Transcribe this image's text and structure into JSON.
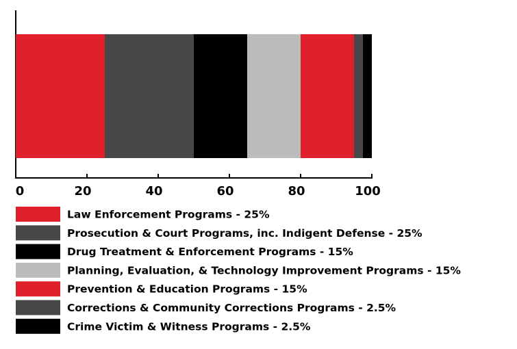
{
  "chart_data": {
    "type": "bar",
    "orientation": "horizontal",
    "stacked": true,
    "categories": [
      null
    ],
    "series": [
      {
        "name": "Law Enforcement Programs - 25%",
        "color": "#e0202a",
        "values": [
          25
        ]
      },
      {
        "name": "Prosecution & Court Programs, inc. Indigent Defense - 25%",
        "color": "#48484a",
        "values": [
          25
        ]
      },
      {
        "name": "Drug Treatment & Enforcement Programs - 15%",
        "color": "#000000",
        "values": [
          15
        ]
      },
      {
        "name": "Planning, Evaluation, & Technology Improvement Programs - 15%",
        "color": "#bcbcba",
        "values": [
          15
        ]
      },
      {
        "name": "Prevention & Education Programs - 15%",
        "color": "#e0202a",
        "values": [
          15
        ]
      },
      {
        "name": "Corrections & Community Corrections Programs - 2.5%",
        "color": "#48484a",
        "values": [
          2.5
        ]
      },
      {
        "name": "Crime Victim & Witness Programs - 2.5%",
        "color": "#000000",
        "values": [
          2.5
        ]
      }
    ],
    "xlim": [
      0,
      100
    ],
    "xticks": [
      0,
      20,
      40,
      60,
      80,
      100
    ],
    "legend": "bottom"
  }
}
